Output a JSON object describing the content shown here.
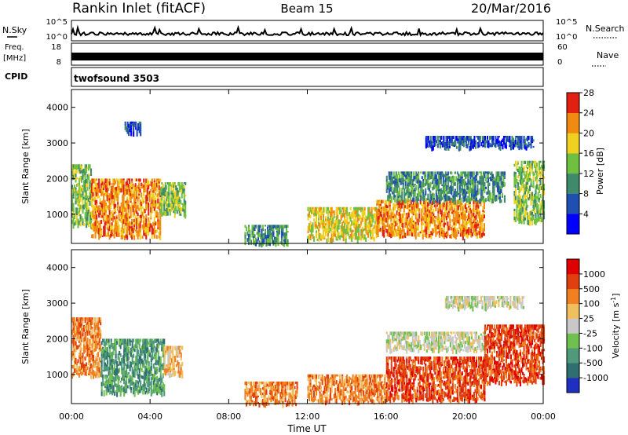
{
  "header": {
    "title": "Rankin Inlet (fitACF)",
    "beam": "Beam 15",
    "date": "20/Mar/2016"
  },
  "top_panels": {
    "nsky": {
      "label": "N.Sky",
      "right_label": "N.Search",
      "left_ticks": [
        "10^5",
        "10^0"
      ],
      "right_ticks": [
        "10^5",
        "10^0"
      ]
    },
    "freq": {
      "label_line1": "Freq.",
      "label_line2": "[MHz]",
      "right_label": "Nave",
      "left_ticks": [
        "18",
        "8"
      ],
      "right_ticks": [
        "60",
        "0"
      ]
    },
    "cpid": {
      "label": "CPID",
      "value": "twofsound 3503"
    }
  },
  "chart_data": [
    {
      "type": "heatmap",
      "panel": "power",
      "ylabel": "Slant Range [km]",
      "xlabel": "",
      "x_ticks": [
        "00:00",
        "04:00",
        "08:00",
        "12:00",
        "16:00",
        "20:00",
        "00:00"
      ],
      "y_ticks": [
        "1000",
        "2000",
        "3000",
        "4000"
      ],
      "ylim": [
        180,
        4500
      ],
      "colorbar": {
        "label": "Power [dB]",
        "ticks": [
          "4",
          "8",
          "12",
          "16",
          "20",
          "24",
          "28"
        ],
        "colors": [
          "#0000ff",
          "#1f4fb0",
          "#3f8a6a",
          "#6fc040",
          "#f0d020",
          "#f08a10",
          "#e02010"
        ]
      },
      "regions": [
        {
          "t0": 0.0,
          "t1": 1.0,
          "r0": 700,
          "r1": 2400,
          "level": 3
        },
        {
          "t0": 1.0,
          "t1": 4.5,
          "r0": 400,
          "r1": 2000,
          "level": 5
        },
        {
          "t0": 4.5,
          "t1": 5.8,
          "r0": 1000,
          "r1": 1900,
          "level": 3
        },
        {
          "t0": 2.7,
          "t1": 3.5,
          "r0": 3300,
          "r1": 3600,
          "level": 1
        },
        {
          "t0": 8.8,
          "t1": 11.0,
          "r0": 180,
          "r1": 700,
          "level": 2
        },
        {
          "t0": 12.0,
          "t1": 15.5,
          "r0": 300,
          "r1": 1200,
          "level": 4
        },
        {
          "t0": 15.5,
          "t1": 21.0,
          "r0": 400,
          "r1": 1400,
          "level": 5
        },
        {
          "t0": 16.0,
          "t1": 22.0,
          "r0": 1400,
          "r1": 2200,
          "level": 2
        },
        {
          "t0": 22.5,
          "t1": 24.0,
          "r0": 800,
          "r1": 2500,
          "level": 3
        },
        {
          "t0": 18.0,
          "t1": 23.5,
          "r0": 2900,
          "r1": 3200,
          "level": 1
        }
      ]
    },
    {
      "type": "heatmap",
      "panel": "velocity",
      "ylabel": "Slant Range [km]",
      "xlabel": "Time UT",
      "x_ticks": [
        "00:00",
        "04:00",
        "08:00",
        "12:00",
        "16:00",
        "20:00",
        "00:00"
      ],
      "y_ticks": [
        "1000",
        "2000",
        "3000",
        "4000"
      ],
      "ylim": [
        180,
        4500
      ],
      "colorbar": {
        "label": "Velocity [m s^-1]",
        "ticks": [
          "1000",
          "500",
          "100",
          "25",
          "-25",
          "-100",
          "-500",
          "-1000"
        ],
        "colors": [
          "#1f2fc0",
          "#2f6f6f",
          "#4f9a7a",
          "#70c050",
          "#c8c8c8",
          "#f0c060",
          "#f08020",
          "#e04010",
          "#e00000"
        ]
      },
      "regions": [
        {
          "t0": 0.0,
          "t1": 1.5,
          "r0": 1000,
          "r1": 2600,
          "level": 6
        },
        {
          "t0": 1.5,
          "t1": 4.7,
          "r0": 500,
          "r1": 2000,
          "level": 2
        },
        {
          "t0": 4.7,
          "t1": 5.6,
          "r0": 1000,
          "r1": 1800,
          "level": 5
        },
        {
          "t0": 8.8,
          "t1": 11.5,
          "r0": 180,
          "r1": 800,
          "level": 6
        },
        {
          "t0": 12.0,
          "t1": 16.0,
          "r0": 250,
          "r1": 1000,
          "level": 6
        },
        {
          "t0": 16.0,
          "t1": 21.0,
          "r0": 300,
          "r1": 1500,
          "level": 7
        },
        {
          "t0": 16.0,
          "t1": 21.0,
          "r0": 1700,
          "r1": 2200,
          "level": 4
        },
        {
          "t0": 21.0,
          "t1": 24.0,
          "r0": 800,
          "r1": 2400,
          "level": 7
        },
        {
          "t0": 19.0,
          "t1": 23.0,
          "r0": 2900,
          "r1": 3200,
          "level": 4
        }
      ]
    }
  ]
}
